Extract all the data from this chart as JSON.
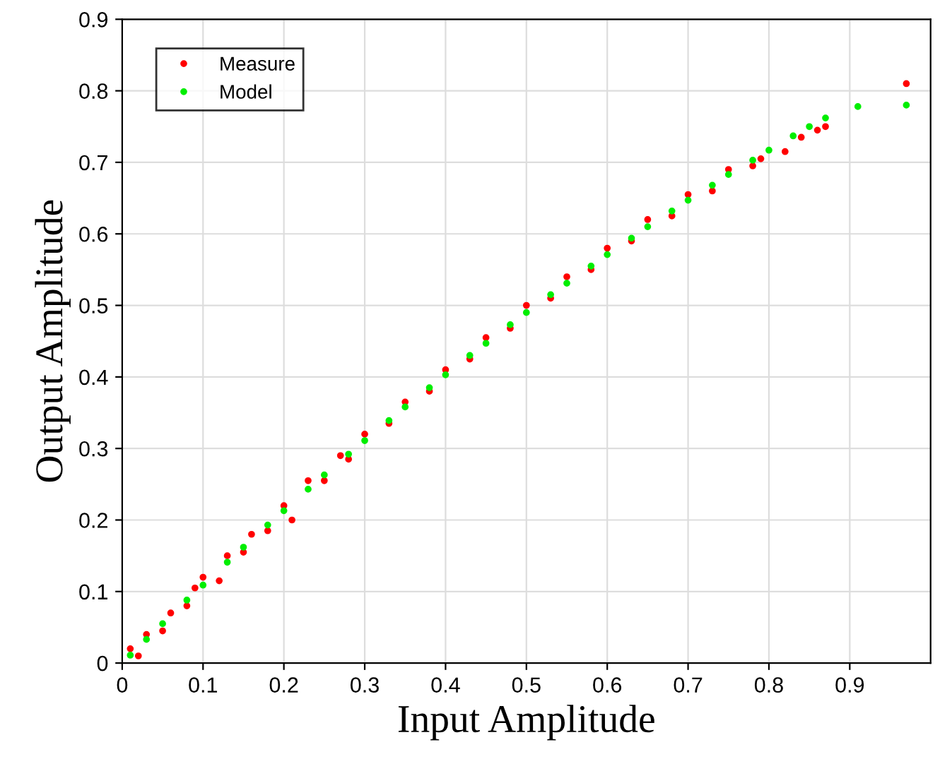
{
  "chart_data": {
    "type": "scatter",
    "xlabel": "Input Amplitude",
    "ylabel": "Output Amplitude",
    "xlim": [
      0,
      1
    ],
    "ylim": [
      0,
      0.9
    ],
    "xticks": [
      0,
      0.1,
      0.2,
      0.3,
      0.4,
      0.5,
      0.6,
      0.7,
      0.8,
      0.9
    ],
    "yticks": [
      0,
      0.1,
      0.2,
      0.3,
      0.4,
      0.5,
      0.6,
      0.7,
      0.8,
      0.9
    ],
    "grid": true,
    "legend": "top left",
    "marker": "circle",
    "series": [
      {
        "name": "Measure",
        "color": "#ff0000",
        "x": [
          0.01,
          0.02,
          0.03,
          0.05,
          0.06,
          0.08,
          0.09,
          0.1,
          0.12,
          0.13,
          0.15,
          0.16,
          0.18,
          0.2,
          0.21,
          0.23,
          0.25,
          0.27,
          0.28,
          0.3,
          0.33,
          0.35,
          0.38,
          0.4,
          0.43,
          0.45,
          0.48,
          0.5,
          0.53,
          0.55,
          0.58,
          0.6,
          0.63,
          0.65,
          0.68,
          0.7,
          0.73,
          0.75,
          0.78,
          0.79,
          0.82,
          0.84,
          0.86,
          0.87,
          0.97
        ],
        "values": [
          0.02,
          0.01,
          0.04,
          0.045,
          0.07,
          0.08,
          0.105,
          0.12,
          0.115,
          0.15,
          0.155,
          0.18,
          0.185,
          0.22,
          0.2,
          0.255,
          0.255,
          0.29,
          0.285,
          0.32,
          0.335,
          0.365,
          0.38,
          0.41,
          0.425,
          0.455,
          0.468,
          0.5,
          0.51,
          0.54,
          0.55,
          0.58,
          0.59,
          0.62,
          0.625,
          0.655,
          0.66,
          0.69,
          0.695,
          0.705,
          0.715,
          0.735,
          0.745,
          0.75,
          0.81
        ]
      },
      {
        "name": "Model",
        "color": "#00ee00",
        "x": [
          0.01,
          0.03,
          0.05,
          0.08,
          0.1,
          0.13,
          0.15,
          0.18,
          0.2,
          0.23,
          0.25,
          0.28,
          0.3,
          0.33,
          0.35,
          0.38,
          0.4,
          0.43,
          0.45,
          0.48,
          0.5,
          0.53,
          0.55,
          0.58,
          0.6,
          0.63,
          0.65,
          0.68,
          0.7,
          0.73,
          0.75,
          0.78,
          0.8,
          0.83,
          0.85,
          0.87,
          0.91,
          0.97
        ],
        "values": [
          0.011,
          0.033,
          0.055,
          0.088,
          0.109,
          0.141,
          0.162,
          0.193,
          0.213,
          0.243,
          0.263,
          0.292,
          0.311,
          0.339,
          0.358,
          0.385,
          0.403,
          0.43,
          0.447,
          0.473,
          0.49,
          0.515,
          0.531,
          0.555,
          0.571,
          0.594,
          0.61,
          0.632,
          0.647,
          0.668,
          0.683,
          0.703,
          0.717,
          0.737,
          0.75,
          0.762,
          0.778,
          0.78
        ]
      }
    ]
  }
}
